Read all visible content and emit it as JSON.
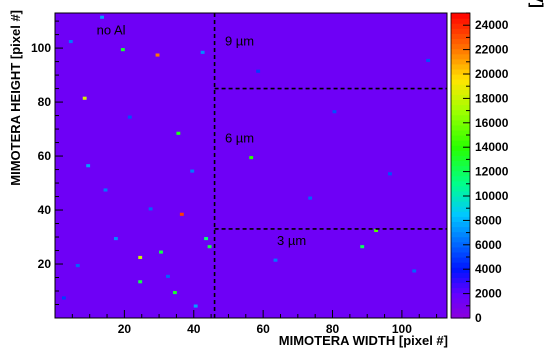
{
  "chart_data": {
    "type": "heatmap",
    "xlabel": "MIMOTERA WIDTH [pixel #]",
    "ylabel": "MIMOTERA HEIGHT [pixel #]",
    "colorbar_label": "Pixel Energy [keV]",
    "xlim": [
      0,
      113
    ],
    "ylim": [
      0,
      113
    ],
    "x_ticks": [
      20,
      40,
      60,
      80,
      100
    ],
    "y_ticks": [
      20,
      40,
      60,
      80,
      100
    ],
    "zlim": [
      0,
      25000
    ],
    "z_ticks": [
      0,
      2000,
      4000,
      6000,
      8000,
      10000,
      12000,
      14000,
      16000,
      18000,
      20000,
      22000,
      24000
    ],
    "background_value": 1500,
    "region_annotations": [
      {
        "label": "no Al",
        "x": 12,
        "y": 105
      },
      {
        "label": "9 µm",
        "x": 49,
        "y": 101
      },
      {
        "label": "6 µm",
        "x": 49,
        "y": 65
      },
      {
        "label": "3 µm",
        "x": 64,
        "y": 27
      }
    ],
    "region_boundaries": [
      {
        "x1": 46,
        "x2": 46,
        "y1": 0,
        "y2": 113
      },
      {
        "x1": 46,
        "x2": 113,
        "y1": 85,
        "y2": 85
      },
      {
        "x1": 46,
        "x2": 113,
        "y1": 33,
        "y2": 33
      }
    ],
    "highlighted_pixels": [
      {
        "x": 37,
        "y": 39,
        "value": 23500
      },
      {
        "x": 30,
        "y": 98,
        "value": 22000
      },
      {
        "x": 9,
        "y": 82,
        "value": 18500
      },
      {
        "x": 25,
        "y": 23,
        "value": 18000
      },
      {
        "x": 36,
        "y": 69,
        "value": 13500
      },
      {
        "x": 25,
        "y": 14,
        "value": 12500
      },
      {
        "x": 31,
        "y": 25,
        "value": 12500
      },
      {
        "x": 44,
        "y": 30,
        "value": 11500
      },
      {
        "x": 45,
        "y": 27,
        "value": 12500
      },
      {
        "x": 57,
        "y": 60,
        "value": 14000
      },
      {
        "x": 89,
        "y": 27,
        "value": 12000
      },
      {
        "x": 93,
        "y": 33,
        "value": 15000
      },
      {
        "x": 35,
        "y": 10,
        "value": 13000
      },
      {
        "x": 20,
        "y": 100,
        "value": 13000
      },
      {
        "x": 43,
        "y": 99,
        "value": 7000
      },
      {
        "x": 14,
        "y": 112,
        "value": 7500
      },
      {
        "x": 5,
        "y": 103,
        "value": 6500
      },
      {
        "x": 10,
        "y": 57,
        "value": 7500
      },
      {
        "x": 15,
        "y": 48,
        "value": 6500
      },
      {
        "x": 18,
        "y": 30,
        "value": 7000
      },
      {
        "x": 28,
        "y": 41,
        "value": 6000
      },
      {
        "x": 40,
        "y": 55,
        "value": 6500
      },
      {
        "x": 33,
        "y": 16,
        "value": 6000
      },
      {
        "x": 41,
        "y": 5,
        "value": 7500
      },
      {
        "x": 64,
        "y": 22,
        "value": 6500
      },
      {
        "x": 74,
        "y": 45,
        "value": 6000
      },
      {
        "x": 81,
        "y": 77,
        "value": 5500
      },
      {
        "x": 97,
        "y": 54,
        "value": 5500
      },
      {
        "x": 104,
        "y": 18,
        "value": 6000
      },
      {
        "x": 108,
        "y": 96,
        "value": 5500
      },
      {
        "x": 59,
        "y": 92,
        "value": 5000
      },
      {
        "x": 22,
        "y": 75,
        "value": 5500
      },
      {
        "x": 7,
        "y": 20,
        "value": 6000
      },
      {
        "x": 3,
        "y": 8,
        "value": 5000
      }
    ],
    "grid": false
  }
}
